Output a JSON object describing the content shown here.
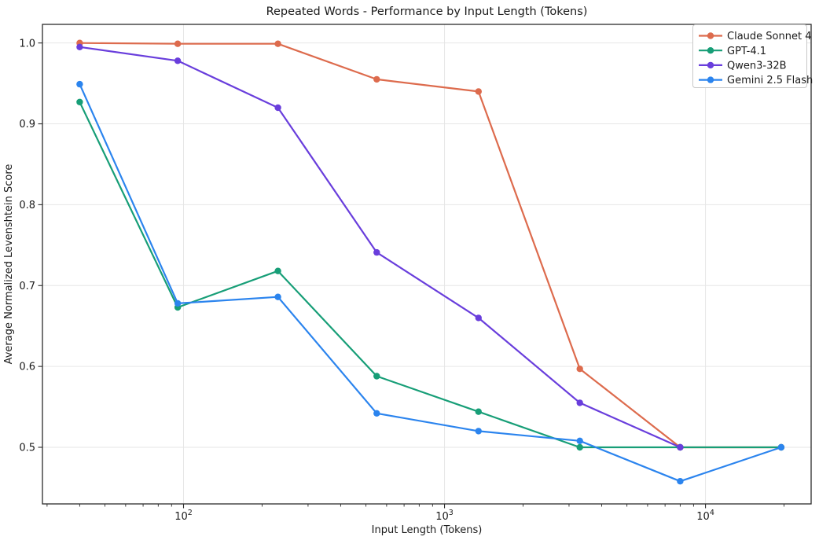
{
  "figure": {
    "background": "#ffffff",
    "spine_color": "#2b2b2b",
    "grid_color": "#e6e6e6",
    "text_color": "#1a1a1a",
    "legend_border_color": "#c8c8c8"
  },
  "chart_data": {
    "type": "line",
    "title": "Repeated Words - Performance by Input Length (Tokens)",
    "xlabel": "Input Length (Tokens)",
    "ylabel": "Average Normalized Levenshtein Score",
    "x_scale": "log",
    "xlim": [
      28.8,
      25400
    ],
    "ylim": [
      0.43,
      1.023
    ],
    "x_major_ticks": [
      100,
      1000,
      10000
    ],
    "x_major_tick_exponents": [
      2,
      3,
      4
    ],
    "y_ticks": [
      0.5,
      0.6,
      0.7,
      0.8,
      0.9,
      1.0
    ],
    "y_tick_labels": [
      "0.5",
      "0.6",
      "0.7",
      "0.8",
      "0.9",
      "1.0"
    ],
    "grid": true,
    "legend_position": "upper right",
    "marker": "circle",
    "series": [
      {
        "name": "Claude Sonnet 4",
        "color": "#dd6b4d",
        "x": [
          40,
          95,
          230,
          550,
          1350,
          3300,
          8000,
          19500
        ],
        "values": [
          1.0,
          0.999,
          0.999,
          0.955,
          0.94,
          0.597,
          0.5,
          0.5
        ]
      },
      {
        "name": "GPT-4.1",
        "color": "#179e77",
        "x": [
          40,
          95,
          230,
          550,
          1350,
          3300,
          8000,
          19500
        ],
        "values": [
          0.927,
          0.673,
          0.718,
          0.588,
          0.544,
          0.5,
          0.5,
          0.5
        ]
      },
      {
        "name": "Qwen3-32B",
        "color": "#693edc",
        "x": [
          40,
          95,
          230,
          550,
          1350,
          3300,
          8000
        ],
        "values": [
          0.995,
          0.978,
          0.92,
          0.741,
          0.66,
          0.555,
          0.5
        ]
      },
      {
        "name": "Gemini 2.5 Flash",
        "color": "#2b84ee",
        "x": [
          40,
          95,
          230,
          550,
          1350,
          3300,
          8000,
          19500
        ],
        "values": [
          0.949,
          0.678,
          0.686,
          0.542,
          0.52,
          0.508,
          0.458,
          0.5
        ]
      }
    ]
  }
}
